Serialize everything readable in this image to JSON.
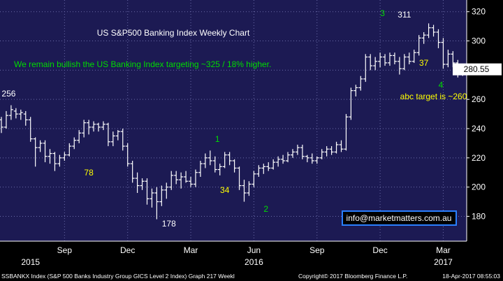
{
  "chart_data": {
    "type": "ohlc",
    "title": "US S&P500 Banking Index Weekly Chart",
    "subtitle": "We remain bullish the US Banking Index targeting ~325 / 18% higher.",
    "ylim": [
      163,
      328
    ],
    "y_ticks": [
      180,
      200,
      220,
      240,
      260,
      280,
      300,
      320
    ],
    "x_tick_labels": [
      "Sep",
      "Dec",
      "Mar",
      "Jun",
      "Sep",
      "Dec",
      "Mar"
    ],
    "x_tick_week": [
      13,
      26,
      39,
      52,
      65,
      78,
      91
    ],
    "year_labels": [
      {
        "label": "2015",
        "week": 6
      },
      {
        "label": "2016",
        "week": 52
      },
      {
        "label": "2017",
        "week": 91
      }
    ],
    "last_price_label": "280.55",
    "watermark": "info@marketmatters.com.au",
    "footer": "SSBANKX Index (S&P 500 Banks Industry Group GICS Level 2 Index) Graph 217  Weekl",
    "copyright": "Copyright© 2017 Bloomberg Finance L.P.",
    "timestamp": "18-Apr-2017 08:55:03",
    "annotations": [
      {
        "text": "256",
        "week": 1.5,
        "price": 262,
        "color": "#ffffff"
      },
      {
        "text": "78",
        "week": 18,
        "price": 208,
        "color": "#ffff00"
      },
      {
        "text": "178",
        "week": 34.5,
        "price": 173,
        "color": "#ffffff"
      },
      {
        "text": "1",
        "week": 44.5,
        "price": 231,
        "color": "#00dd00"
      },
      {
        "text": "34",
        "week": 46,
        "price": 196,
        "color": "#ffff00"
      },
      {
        "text": "2",
        "week": 54.5,
        "price": 183,
        "color": "#00dd00"
      },
      {
        "text": "3",
        "week": 78.5,
        "price": 317,
        "color": "#00dd00"
      },
      {
        "text": "311",
        "week": 83,
        "price": 316,
        "color": "#ffffff"
      },
      {
        "text": "37",
        "week": 87,
        "price": 283,
        "color": "#ffff00"
      },
      {
        "text": "4",
        "week": 90.5,
        "price": 268,
        "color": "#00dd00"
      },
      {
        "text": "abc target is ~260",
        "week": 89,
        "price": 260,
        "color": "#ffff00"
      }
    ],
    "ohlc": [
      {
        "o": 246,
        "h": 248,
        "l": 237,
        "c": 241
      },
      {
        "o": 241,
        "h": 252,
        "l": 240,
        "c": 249
      },
      {
        "o": 249,
        "h": 256,
        "l": 246,
        "c": 253
      },
      {
        "o": 252,
        "h": 254,
        "l": 247,
        "c": 250
      },
      {
        "o": 250,
        "h": 253,
        "l": 246,
        "c": 251
      },
      {
        "o": 250,
        "h": 252,
        "l": 242,
        "c": 246
      },
      {
        "o": 246,
        "h": 248,
        "l": 231,
        "c": 233
      },
      {
        "o": 233,
        "h": 234,
        "l": 214,
        "c": 227
      },
      {
        "o": 227,
        "h": 232,
        "l": 224,
        "c": 230
      },
      {
        "o": 230,
        "h": 232,
        "l": 217,
        "c": 221
      },
      {
        "o": 221,
        "h": 226,
        "l": 216,
        "c": 223
      },
      {
        "o": 223,
        "h": 224,
        "l": 211,
        "c": 216
      },
      {
        "o": 216,
        "h": 222,
        "l": 214,
        "c": 220
      },
      {
        "o": 220,
        "h": 224,
        "l": 218,
        "c": 222
      },
      {
        "o": 222,
        "h": 230,
        "l": 221,
        "c": 228
      },
      {
        "o": 228,
        "h": 234,
        "l": 226,
        "c": 232
      },
      {
        "o": 232,
        "h": 239,
        "l": 230,
        "c": 237
      },
      {
        "o": 237,
        "h": 246,
        "l": 234,
        "c": 244
      },
      {
        "o": 244,
        "h": 246,
        "l": 236,
        "c": 241
      },
      {
        "o": 241,
        "h": 245,
        "l": 238,
        "c": 243
      },
      {
        "o": 243,
        "h": 244,
        "l": 238,
        "c": 241
      },
      {
        "o": 241,
        "h": 245,
        "l": 239,
        "c": 243
      },
      {
        "o": 243,
        "h": 244,
        "l": 228,
        "c": 231
      },
      {
        "o": 231,
        "h": 238,
        "l": 228,
        "c": 235
      },
      {
        "o": 235,
        "h": 239,
        "l": 232,
        "c": 238
      },
      {
        "o": 238,
        "h": 240,
        "l": 225,
        "c": 228
      },
      {
        "o": 228,
        "h": 230,
        "l": 214,
        "c": 216
      },
      {
        "o": 216,
        "h": 218,
        "l": 203,
        "c": 206
      },
      {
        "o": 206,
        "h": 210,
        "l": 196,
        "c": 201
      },
      {
        "o": 201,
        "h": 206,
        "l": 198,
        "c": 204
      },
      {
        "o": 204,
        "h": 206,
        "l": 188,
        "c": 192
      },
      {
        "o": 192,
        "h": 199,
        "l": 186,
        "c": 196
      },
      {
        "o": 196,
        "h": 200,
        "l": 178,
        "c": 190
      },
      {
        "o": 190,
        "h": 201,
        "l": 187,
        "c": 198
      },
      {
        "o": 198,
        "h": 203,
        "l": 192,
        "c": 200
      },
      {
        "o": 200,
        "h": 211,
        "l": 198,
        "c": 208
      },
      {
        "o": 208,
        "h": 211,
        "l": 202,
        "c": 205
      },
      {
        "o": 205,
        "h": 210,
        "l": 199,
        "c": 207
      },
      {
        "o": 207,
        "h": 211,
        "l": 203,
        "c": 204
      },
      {
        "o": 204,
        "h": 207,
        "l": 200,
        "c": 202
      },
      {
        "o": 202,
        "h": 212,
        "l": 200,
        "c": 210
      },
      {
        "o": 210,
        "h": 218,
        "l": 207,
        "c": 216
      },
      {
        "o": 216,
        "h": 223,
        "l": 213,
        "c": 220
      },
      {
        "o": 220,
        "h": 225,
        "l": 215,
        "c": 218
      },
      {
        "o": 218,
        "h": 221,
        "l": 210,
        "c": 212
      },
      {
        "o": 212,
        "h": 216,
        "l": 208,
        "c": 214
      },
      {
        "o": 214,
        "h": 224,
        "l": 213,
        "c": 222
      },
      {
        "o": 222,
        "h": 224,
        "l": 215,
        "c": 218
      },
      {
        "o": 218,
        "h": 219,
        "l": 210,
        "c": 213
      },
      {
        "o": 213,
        "h": 214,
        "l": 198,
        "c": 201
      },
      {
        "o": 201,
        "h": 205,
        "l": 190,
        "c": 196
      },
      {
        "o": 196,
        "h": 204,
        "l": 194,
        "c": 202
      },
      {
        "o": 202,
        "h": 211,
        "l": 200,
        "c": 209
      },
      {
        "o": 209,
        "h": 215,
        "l": 207,
        "c": 213
      },
      {
        "o": 213,
        "h": 216,
        "l": 209,
        "c": 214
      },
      {
        "o": 214,
        "h": 217,
        "l": 211,
        "c": 213
      },
      {
        "o": 213,
        "h": 219,
        "l": 212,
        "c": 217
      },
      {
        "o": 217,
        "h": 221,
        "l": 214,
        "c": 219
      },
      {
        "o": 219,
        "h": 222,
        "l": 216,
        "c": 218
      },
      {
        "o": 218,
        "h": 224,
        "l": 217,
        "c": 222
      },
      {
        "o": 222,
        "h": 226,
        "l": 220,
        "c": 224
      },
      {
        "o": 224,
        "h": 229,
        "l": 222,
        "c": 227
      },
      {
        "o": 227,
        "h": 229,
        "l": 219,
        "c": 221
      },
      {
        "o": 221,
        "h": 222,
        "l": 217,
        "c": 220
      },
      {
        "o": 220,
        "h": 223,
        "l": 216,
        "c": 218
      },
      {
        "o": 218,
        "h": 221,
        "l": 216,
        "c": 220
      },
      {
        "o": 220,
        "h": 226,
        "l": 219,
        "c": 224
      },
      {
        "o": 224,
        "h": 228,
        "l": 221,
        "c": 226
      },
      {
        "o": 226,
        "h": 228,
        "l": 222,
        "c": 224
      },
      {
        "o": 224,
        "h": 231,
        "l": 223,
        "c": 229
      },
      {
        "o": 229,
        "h": 232,
        "l": 224,
        "c": 226
      },
      {
        "o": 226,
        "h": 250,
        "l": 225,
        "c": 248
      },
      {
        "o": 248,
        "h": 268,
        "l": 246,
        "c": 266
      },
      {
        "o": 266,
        "h": 270,
        "l": 262,
        "c": 268
      },
      {
        "o": 268,
        "h": 276,
        "l": 266,
        "c": 274
      },
      {
        "o": 274,
        "h": 291,
        "l": 272,
        "c": 289
      },
      {
        "o": 289,
        "h": 291,
        "l": 280,
        "c": 283
      },
      {
        "o": 283,
        "h": 289,
        "l": 280,
        "c": 286
      },
      {
        "o": 286,
        "h": 292,
        "l": 282,
        "c": 289
      },
      {
        "o": 289,
        "h": 291,
        "l": 283,
        "c": 285
      },
      {
        "o": 285,
        "h": 292,
        "l": 283,
        "c": 290
      },
      {
        "o": 290,
        "h": 292,
        "l": 284,
        "c": 286
      },
      {
        "o": 286,
        "h": 289,
        "l": 277,
        "c": 281
      },
      {
        "o": 281,
        "h": 291,
        "l": 280,
        "c": 289
      },
      {
        "o": 289,
        "h": 292,
        "l": 284,
        "c": 286
      },
      {
        "o": 286,
        "h": 294,
        "l": 285,
        "c": 292
      },
      {
        "o": 292,
        "h": 304,
        "l": 290,
        "c": 302
      },
      {
        "o": 302,
        "h": 306,
        "l": 298,
        "c": 304
      },
      {
        "o": 304,
        "h": 312,
        "l": 302,
        "c": 309
      },
      {
        "o": 309,
        "h": 311,
        "l": 303,
        "c": 306
      },
      {
        "o": 306,
        "h": 308,
        "l": 295,
        "c": 299
      },
      {
        "o": 299,
        "h": 302,
        "l": 281,
        "c": 284
      },
      {
        "o": 284,
        "h": 294,
        "l": 282,
        "c": 291
      },
      {
        "o": 291,
        "h": 293,
        "l": 282,
        "c": 285
      },
      {
        "o": 285,
        "h": 287,
        "l": 275,
        "c": 277
      },
      {
        "o": 277,
        "h": 282,
        "l": 276,
        "c": 280.55
      }
    ]
  },
  "colors": {
    "plot_bg": "#1c1a53",
    "frame_bg": "#000000",
    "bar": "#ffffff",
    "grid": "#6a6aa8",
    "title": "#ffffff",
    "subtitle": "#00dd00",
    "axis_text": "#ffffff",
    "footer_text": "#ffffff",
    "watermark_border": "#2a7fff",
    "watermark_bg": "#000000",
    "price_box_bg": "#ffffff",
    "price_box_text": "#000000"
  }
}
